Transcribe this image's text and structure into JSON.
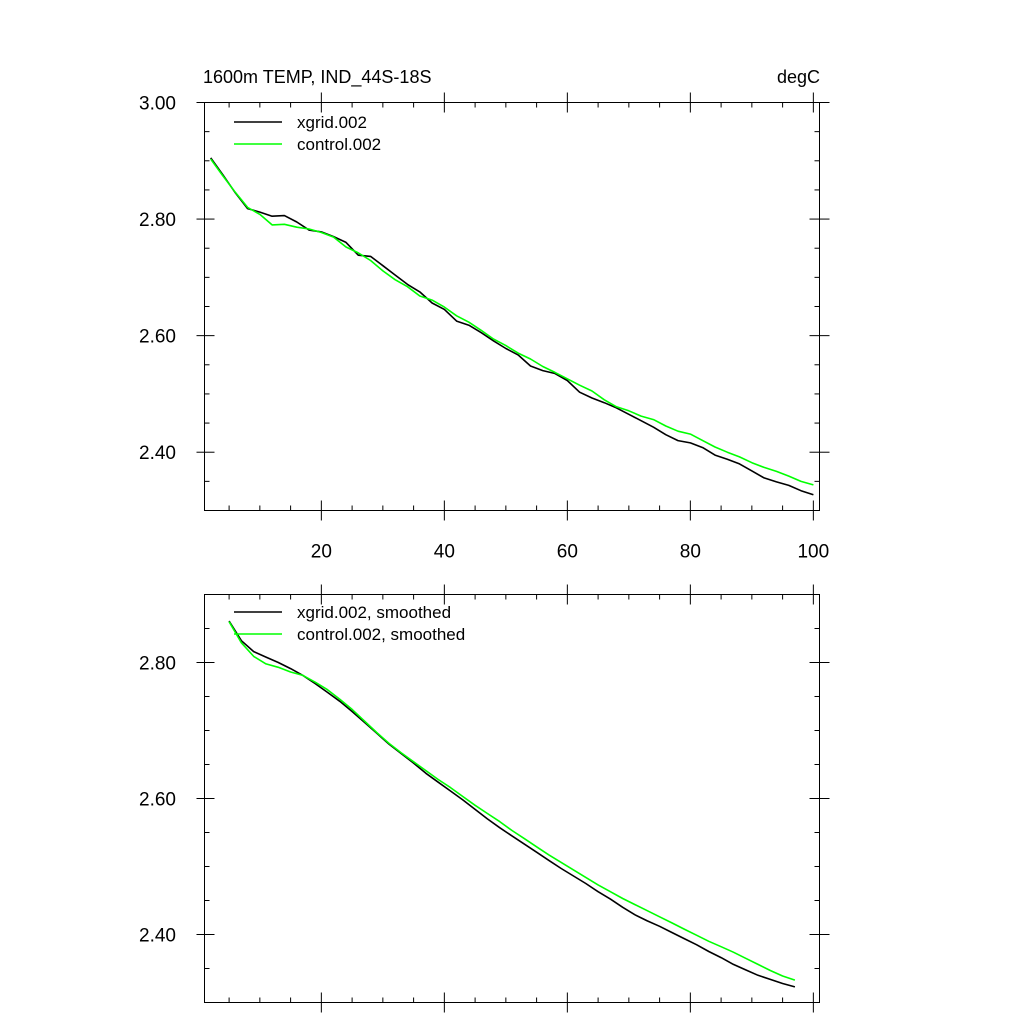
{
  "chart_data": [
    {
      "type": "line",
      "title": "1600m TEMP, IND_44S-18S",
      "units": "degC",
      "xlabel": "",
      "ylabel": "",
      "xlim": [
        1,
        101
      ],
      "ylim": [
        2.3,
        3.0
      ],
      "x_ticks": [
        "20",
        "40",
        "60",
        "80",
        "100"
      ],
      "y_ticks": [
        "3.00",
        "2.80",
        "2.60",
        "2.40"
      ],
      "legend_position": "top-left",
      "grid": false,
      "x": [
        2,
        4,
        6,
        8,
        10,
        12,
        14,
        16,
        18,
        20,
        22,
        24,
        26,
        28,
        30,
        32,
        34,
        36,
        38,
        40,
        42,
        44,
        46,
        48,
        50,
        52,
        54,
        56,
        58,
        60,
        62,
        64,
        66,
        68,
        70,
        72,
        74,
        76,
        78,
        80,
        82,
        84,
        86,
        88,
        90,
        92,
        94,
        96,
        98,
        100
      ],
      "series": [
        {
          "name": "xgrid.002",
          "color": "#000000",
          "values": [
            2.905,
            2.876,
            2.845,
            2.818,
            2.812,
            2.805,
            2.806,
            2.795,
            2.781,
            2.778,
            2.77,
            2.76,
            2.738,
            2.736,
            2.72,
            2.704,
            2.688,
            2.675,
            2.656,
            2.645,
            2.625,
            2.618,
            2.605,
            2.591,
            2.578,
            2.567,
            2.548,
            2.54,
            2.535,
            2.523,
            2.503,
            2.493,
            2.485,
            2.476,
            2.465,
            2.454,
            2.443,
            2.43,
            2.42,
            2.416,
            2.408,
            2.395,
            2.388,
            2.38,
            2.368,
            2.356,
            2.349,
            2.343,
            2.334,
            2.327
          ]
        },
        {
          "name": "control.002",
          "color": "#00ff00",
          "values": [
            2.903,
            2.874,
            2.846,
            2.82,
            2.808,
            2.79,
            2.791,
            2.786,
            2.783,
            2.777,
            2.769,
            2.752,
            2.742,
            2.729,
            2.711,
            2.696,
            2.684,
            2.668,
            2.661,
            2.649,
            2.634,
            2.623,
            2.609,
            2.594,
            2.583,
            2.57,
            2.56,
            2.547,
            2.537,
            2.526,
            2.515,
            2.505,
            2.49,
            2.478,
            2.471,
            2.462,
            2.456,
            2.445,
            2.436,
            2.431,
            2.42,
            2.409,
            2.4,
            2.392,
            2.382,
            2.374,
            2.367,
            2.359,
            2.35,
            2.344
          ]
        }
      ]
    },
    {
      "type": "line",
      "title": "",
      "xlabel": "",
      "ylabel": "",
      "xlim": [
        1,
        101
      ],
      "ylim": [
        2.3,
        2.9
      ],
      "x_ticks": [],
      "y_ticks": [
        "2.80",
        "2.60",
        "2.40"
      ],
      "legend_position": "top-left",
      "grid": false,
      "x": [
        5,
        7,
        9,
        11,
        13,
        15,
        17,
        19,
        21,
        23,
        25,
        27,
        29,
        31,
        33,
        35,
        37,
        39,
        41,
        43,
        45,
        47,
        49,
        51,
        53,
        55,
        57,
        59,
        61,
        63,
        65,
        67,
        69,
        71,
        73,
        75,
        77,
        79,
        81,
        83,
        85,
        87,
        89,
        91,
        93,
        95,
        97
      ],
      "series": [
        {
          "name": "xgrid.002, smoothed",
          "color": "#000000",
          "values": [
            2.861,
            2.832,
            2.816,
            2.808,
            2.8,
            2.791,
            2.781,
            2.769,
            2.756,
            2.743,
            2.728,
            2.712,
            2.696,
            2.68,
            2.666,
            2.652,
            2.637,
            2.624,
            2.611,
            2.598,
            2.584,
            2.57,
            2.557,
            2.545,
            2.533,
            2.521,
            2.509,
            2.497,
            2.486,
            2.475,
            2.463,
            2.452,
            2.44,
            2.429,
            2.42,
            2.412,
            2.403,
            2.394,
            2.385,
            2.375,
            2.366,
            2.356,
            2.348,
            2.34,
            2.334,
            2.328,
            2.323
          ]
        },
        {
          "name": "control.002, smoothed",
          "color": "#00ff00",
          "values": [
            2.86,
            2.829,
            2.809,
            2.798,
            2.793,
            2.786,
            2.781,
            2.771,
            2.76,
            2.746,
            2.731,
            2.714,
            2.697,
            2.681,
            2.667,
            2.654,
            2.641,
            2.628,
            2.616,
            2.603,
            2.59,
            2.578,
            2.566,
            2.553,
            2.541,
            2.529,
            2.517,
            2.506,
            2.495,
            2.484,
            2.473,
            2.463,
            2.453,
            2.444,
            2.435,
            2.426,
            2.417,
            2.408,
            2.399,
            2.39,
            2.382,
            2.374,
            2.365,
            2.356,
            2.347,
            2.339,
            2.333
          ]
        }
      ]
    }
  ]
}
